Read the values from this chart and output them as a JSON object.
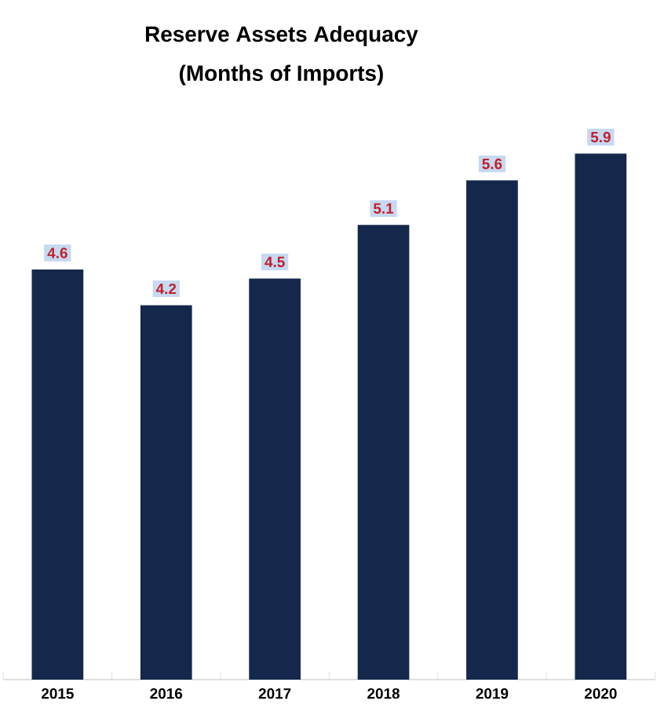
{
  "chart_data": {
    "type": "bar",
    "title": "Reserve Assets  Adequacy",
    "subtitle": "(Months of Imports)",
    "categories": [
      "2015",
      "2016",
      "2017",
      "2018",
      "2019",
      "2020"
    ],
    "values": [
      4.6,
      4.2,
      4.5,
      5.1,
      5.6,
      5.9
    ],
    "color": "#14284b",
    "data_labels": true
  }
}
